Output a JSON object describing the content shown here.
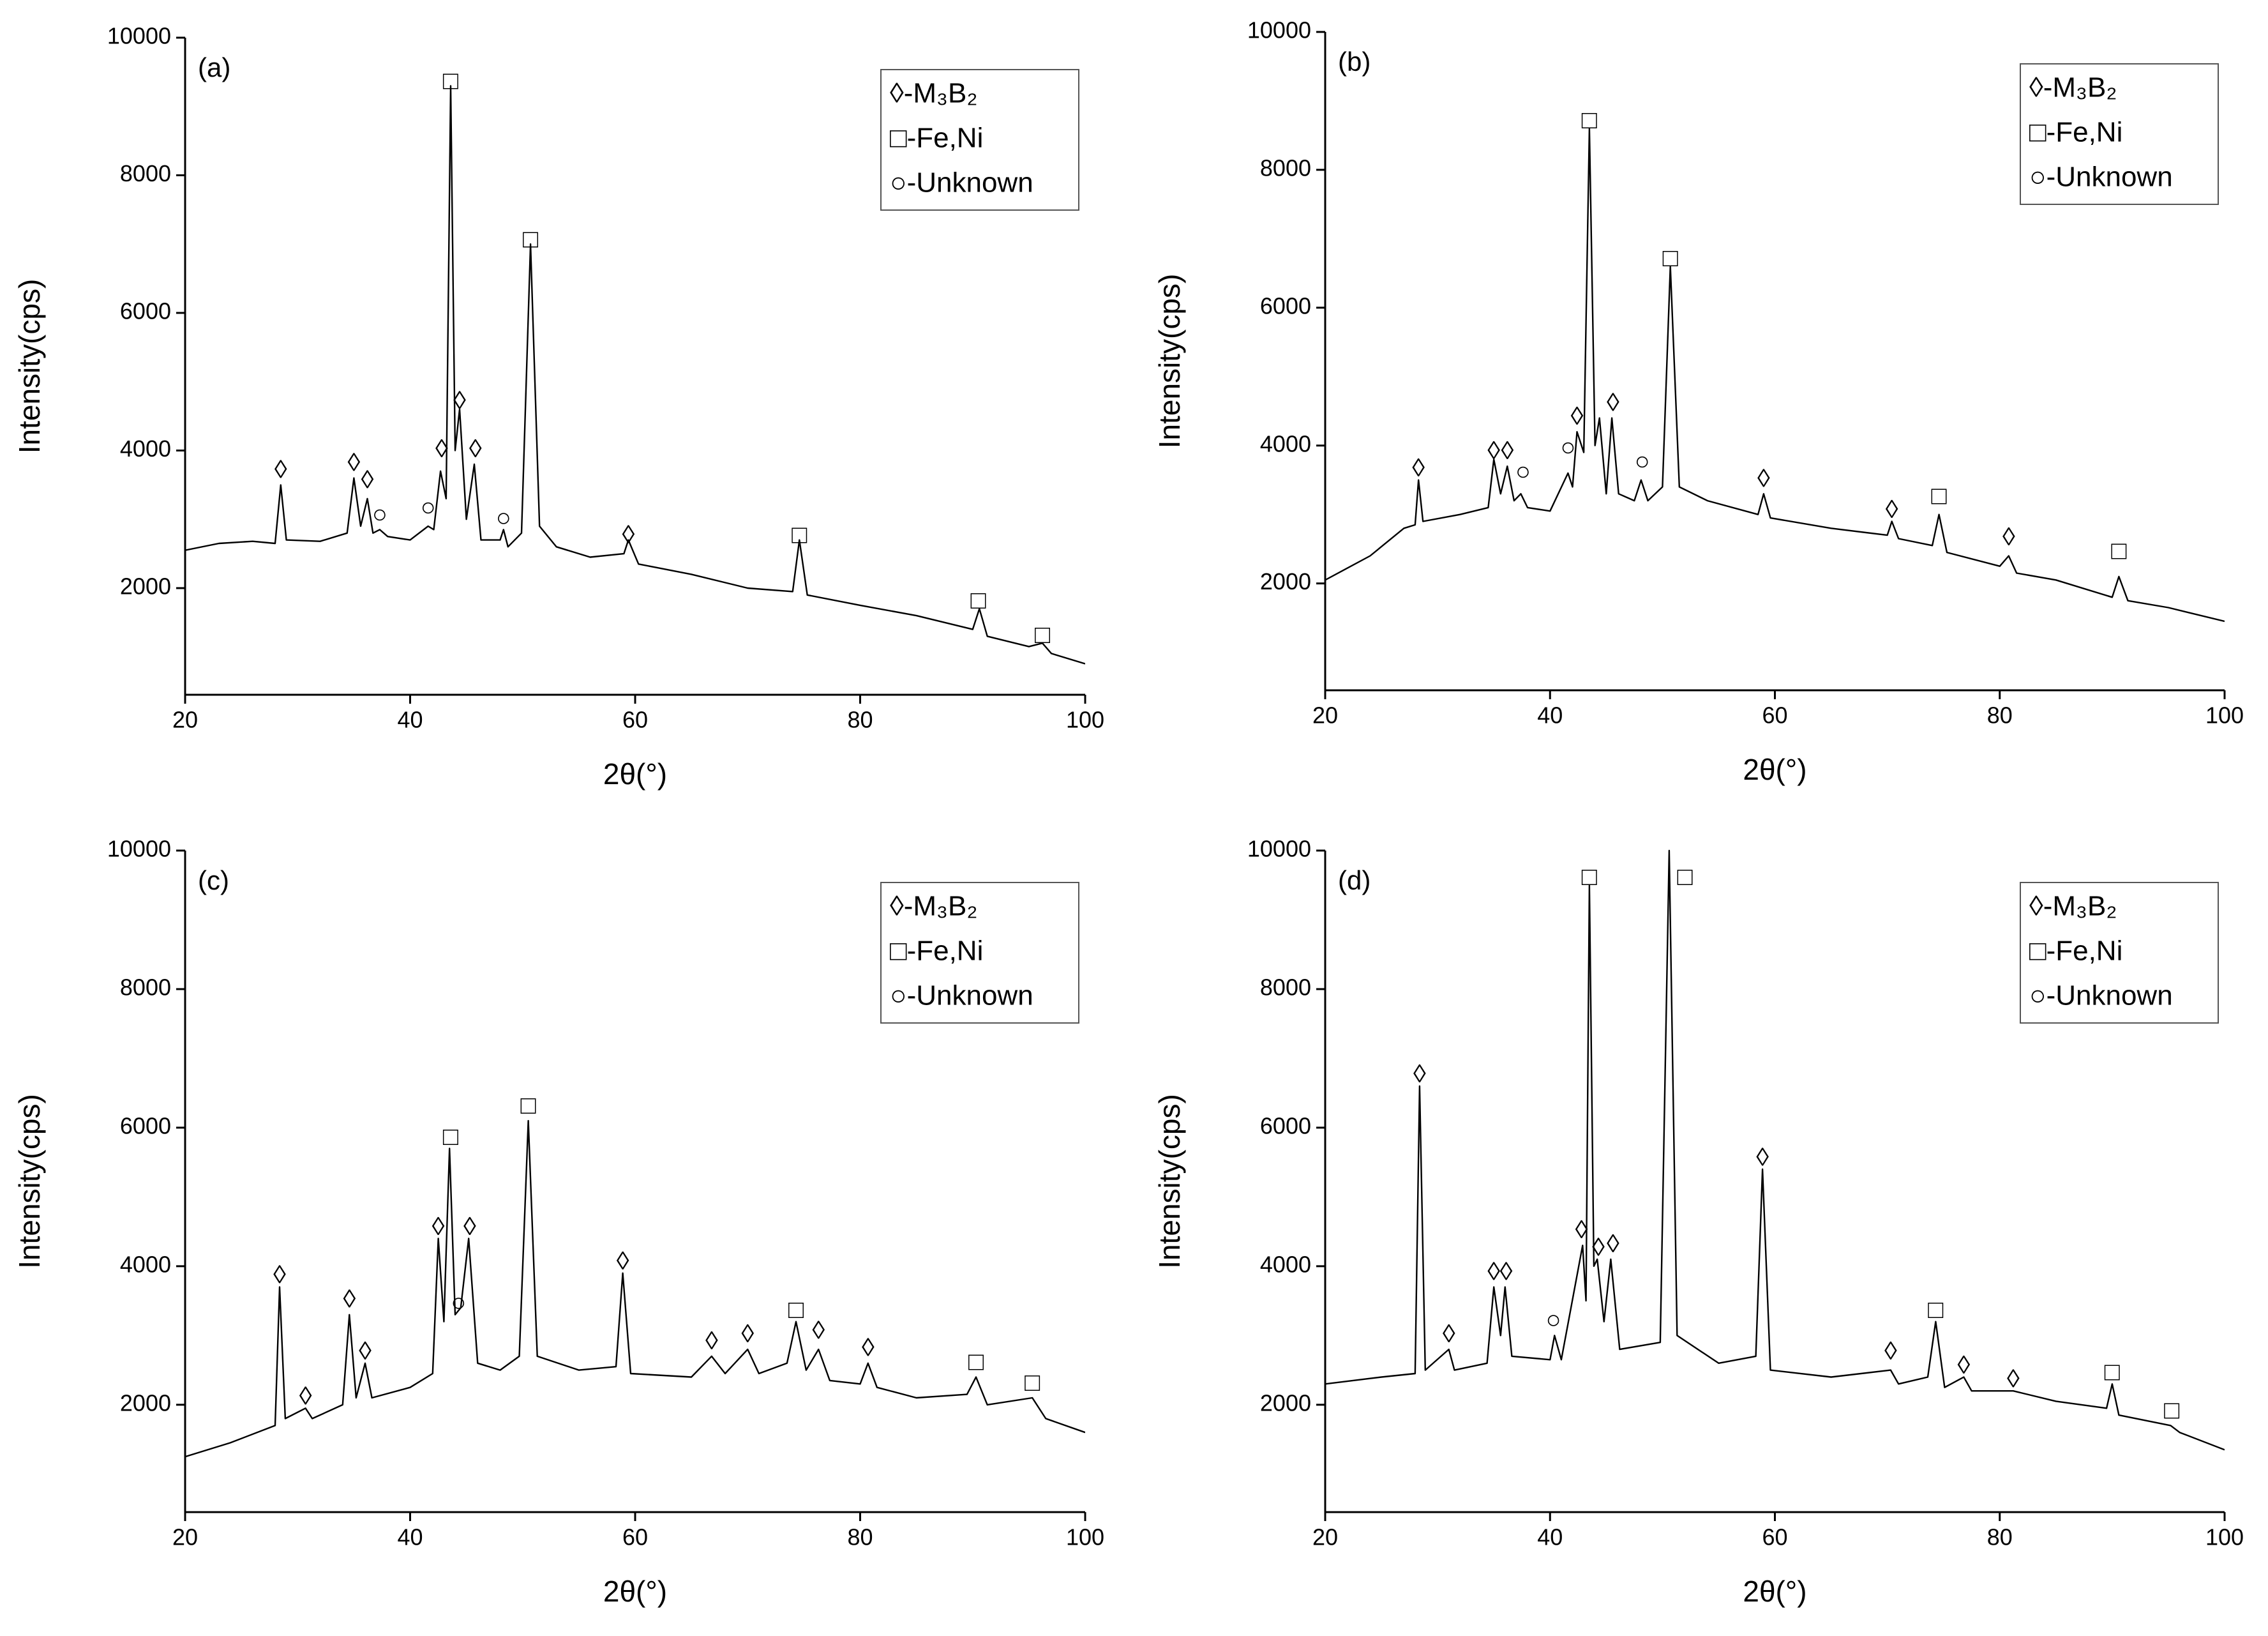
{
  "chart_data": [
    {
      "type": "line",
      "title": "(a)",
      "x_label": "2θ(°)",
      "y_label": "Intensity(cps)",
      "x": [
        20,
        23,
        26,
        28,
        28.5,
        29,
        32,
        34.4,
        35,
        35.6,
        36.2,
        36.7,
        37.3,
        38,
        40,
        41.6,
        42.1,
        42.7,
        43.2,
        43.6,
        44,
        44.4,
        45,
        45.7,
        46.3,
        48,
        48.3,
        48.7,
        49.9,
        50.7,
        51.5,
        53,
        56,
        59,
        59.4,
        60.3,
        65,
        70,
        74,
        74.6,
        75.3,
        80,
        85,
        90,
        90.6,
        91.3,
        95,
        96.2,
        97,
        100
      ],
      "series": [
        {
          "color": "#000000",
          "values": [
            2550,
            2650,
            2680,
            2650,
            3500,
            2700,
            2680,
            2800,
            3600,
            2900,
            3300,
            2800,
            2850,
            2750,
            2700,
            2900,
            2850,
            3700,
            3300,
            9300,
            4000,
            4600,
            3000,
            3800,
            2700,
            2700,
            2850,
            2600,
            2800,
            7000,
            2900,
            2600,
            2450,
            2500,
            2700,
            2350,
            2200,
            2000,
            1950,
            2700,
            1900,
            1750,
            1600,
            1400,
            1700,
            1300,
            1150,
            1200,
            1050,
            900
          ]
        }
      ],
      "xlim": [
        20,
        100
      ],
      "xticks": [
        20,
        40,
        60,
        80,
        100
      ],
      "ylim": [
        450,
        10000
      ],
      "yticks": [
        2000,
        4000,
        6000,
        8000,
        10000
      ],
      "legend": "upper right",
      "legend_entries": [
        "◊-M₃B₂",
        "□-Fe,Ni",
        "○-Unknown"
      ],
      "annotations": [
        {
          "text": "◊",
          "x": 28.5,
          "y": 3700
        },
        {
          "text": "◊",
          "x": 35,
          "y": 3800
        },
        {
          "text": "◊",
          "x": 36.2,
          "y": 3550
        },
        {
          "text": "◊",
          "x": 42.8,
          "y": 4000
        },
        {
          "text": "◊",
          "x": 44.4,
          "y": 4700
        },
        {
          "text": "◊",
          "x": 45.8,
          "y": 4000
        },
        {
          "text": "◊",
          "x": 59.4,
          "y": 2750
        },
        {
          "text": "□",
          "x": 43.6,
          "y": 9350
        },
        {
          "text": "□",
          "x": 50.7,
          "y": 7050
        },
        {
          "text": "□",
          "x": 74.6,
          "y": 2750
        },
        {
          "text": "□",
          "x": 90.5,
          "y": 1800
        },
        {
          "text": "□",
          "x": 96.2,
          "y": 1300
        },
        {
          "text": "○",
          "x": 37.3,
          "y": 3050
        },
        {
          "text": "○",
          "x": 41.6,
          "y": 3150
        },
        {
          "text": "○",
          "x": 48.3,
          "y": 3000
        }
      ]
    },
    {
      "type": "line",
      "title": "(b)",
      "x_label": "2θ(°)",
      "y_label": "Intensity(cps)",
      "x": [
        20,
        24,
        27,
        28,
        28.3,
        28.7,
        32,
        34.5,
        35,
        35.6,
        36.2,
        36.8,
        37.4,
        38,
        40,
        41.6,
        42,
        42.4,
        43,
        43.5,
        44,
        44.4,
        45,
        45.5,
        46.1,
        47.5,
        48.1,
        48.7,
        50,
        50.7,
        51.5,
        54,
        58.5,
        59,
        59.6,
        65,
        70,
        70.4,
        71,
        74,
        74.6,
        75.3,
        80,
        80.8,
        81.5,
        85,
        90,
        90.6,
        91.4,
        95,
        100
      ],
      "series": [
        {
          "color": "#000000",
          "values": [
            2050,
            2400,
            2800,
            2850,
            3500,
            2900,
            3000,
            3100,
            3800,
            3300,
            3700,
            3200,
            3300,
            3100,
            3050,
            3600,
            3400,
            4200,
            3900,
            8600,
            4000,
            4400,
            3300,
            4400,
            3300,
            3200,
            3500,
            3200,
            3400,
            6600,
            3400,
            3200,
            3000,
            3300,
            2950,
            2800,
            2700,
            2900,
            2650,
            2550,
            3000,
            2450,
            2250,
            2400,
            2150,
            2050,
            1800,
            2100,
            1750,
            1650,
            1450
          ]
        }
      ],
      "xlim": [
        20,
        100
      ],
      "xticks": [
        20,
        40,
        60,
        80,
        100
      ],
      "ylim": [
        450,
        10000
      ],
      "yticks": [
        2000,
        4000,
        6000,
        8000,
        10000
      ],
      "legend": "upper right",
      "legend_entries": [
        "◊-M₃B₂",
        "□-Fe,Ni",
        "○-Unknown"
      ],
      "annotations": [
        {
          "text": "◊",
          "x": 28.3,
          "y": 3650
        },
        {
          "text": "◊",
          "x": 35,
          "y": 3900
        },
        {
          "text": "◊",
          "x": 36.2,
          "y": 3900
        },
        {
          "text": "◊",
          "x": 42.4,
          "y": 4400
        },
        {
          "text": "◊",
          "x": 45.6,
          "y": 4600
        },
        {
          "text": "◊",
          "x": 59,
          "y": 3500
        },
        {
          "text": "◊",
          "x": 70.4,
          "y": 3050
        },
        {
          "text": "◊",
          "x": 80.8,
          "y": 2650
        },
        {
          "text": "□",
          "x": 43.5,
          "y": 8700
        },
        {
          "text": "□",
          "x": 50.7,
          "y": 6700
        },
        {
          "text": "□",
          "x": 74.6,
          "y": 3250
        },
        {
          "text": "□",
          "x": 90.6,
          "y": 2450
        },
        {
          "text": "○",
          "x": 37.6,
          "y": 3600
        },
        {
          "text": "○",
          "x": 41.6,
          "y": 3950
        },
        {
          "text": "○",
          "x": 48.2,
          "y": 3750
        }
      ]
    },
    {
      "type": "line",
      "title": "(c)",
      "x_label": "2θ(°)",
      "y_label": "Intensity(cps)",
      "x": [
        20,
        24,
        28,
        28.4,
        28.9,
        30.7,
        31.3,
        34,
        34.6,
        35.2,
        36,
        36.6,
        40,
        42,
        42.5,
        43,
        43.5,
        44,
        44.5,
        45.2,
        46,
        48,
        49.7,
        50.5,
        51.3,
        55,
        58.3,
        58.9,
        59.6,
        65,
        66.8,
        68,
        70,
        71,
        73.5,
        74.3,
        75.2,
        76.3,
        77.3,
        80,
        80.7,
        81.5,
        85,
        89.5,
        90.3,
        91.3,
        95.3,
        96.5,
        100
      ],
      "series": [
        {
          "color": "#000000",
          "values": [
            1250,
            1450,
            1700,
            3700,
            1800,
            1950,
            1800,
            2000,
            3300,
            2100,
            2600,
            2100,
            2250,
            2450,
            4400,
            3200,
            5700,
            3300,
            3400,
            4400,
            2600,
            2500,
            2700,
            6100,
            2700,
            2500,
            2550,
            3900,
            2450,
            2400,
            2700,
            2450,
            2800,
            2450,
            2600,
            3200,
            2500,
            2800,
            2350,
            2300,
            2600,
            2250,
            2100,
            2150,
            2400,
            2000,
            2100,
            1800,
            1600
          ]
        }
      ],
      "xlim": [
        20,
        100
      ],
      "xticks": [
        20,
        40,
        60,
        80,
        100
      ],
      "ylim": [
        450,
        10000
      ],
      "yticks": [
        2000,
        4000,
        6000,
        8000,
        10000
      ],
      "legend": "upper right",
      "legend_entries": [
        "◊-M₃B₂",
        "□-Fe,Ni",
        "○-Unknown"
      ],
      "annotations": [
        {
          "text": "◊",
          "x": 28.4,
          "y": 3850
        },
        {
          "text": "◊",
          "x": 30.7,
          "y": 2100
        },
        {
          "text": "◊",
          "x": 34.6,
          "y": 3500
        },
        {
          "text": "◊",
          "x": 36,
          "y": 2750
        },
        {
          "text": "◊",
          "x": 42.5,
          "y": 4550
        },
        {
          "text": "◊",
          "x": 45.3,
          "y": 4550
        },
        {
          "text": "◊",
          "x": 58.9,
          "y": 4050
        },
        {
          "text": "◊",
          "x": 66.8,
          "y": 2900
        },
        {
          "text": "◊",
          "x": 70,
          "y": 3000
        },
        {
          "text": "◊",
          "x": 76.3,
          "y": 3050
        },
        {
          "text": "◊",
          "x": 80.7,
          "y": 2800
        },
        {
          "text": "□",
          "x": 43.6,
          "y": 5850
        },
        {
          "text": "□",
          "x": 50.5,
          "y": 6300
        },
        {
          "text": "□",
          "x": 74.3,
          "y": 3350
        },
        {
          "text": "□",
          "x": 90.3,
          "y": 2600
        },
        {
          "text": "□",
          "x": 95.3,
          "y": 2300
        },
        {
          "text": "○",
          "x": 44.3,
          "y": 3450
        }
      ]
    },
    {
      "type": "line",
      "title": "(d)",
      "x_label": "2θ(°)",
      "y_label": "Intensity(cps)",
      "x": [
        20,
        25,
        28,
        28.4,
        28.9,
        31,
        31.5,
        34.4,
        35,
        35.6,
        36,
        36.6,
        40,
        40.4,
        41,
        42.9,
        43.2,
        43.5,
        43.9,
        44.2,
        44.8,
        45.4,
        46.2,
        49.8,
        50.6,
        51.3,
        55,
        58.3,
        58.9,
        59.6,
        65,
        70.3,
        71,
        73.6,
        74.3,
        75.1,
        76.8,
        77.5,
        81.2,
        85,
        89.5,
        90,
        90.6,
        95.2,
        96,
        100
      ],
      "series": [
        {
          "color": "#000000",
          "values": [
            2300,
            2400,
            2450,
            6600,
            2500,
            2800,
            2500,
            2600,
            3700,
            3000,
            3700,
            2700,
            2650,
            3000,
            2650,
            4300,
            3500,
            9500,
            4000,
            4100,
            3200,
            4100,
            2800,
            2900,
            10000,
            3000,
            2600,
            2700,
            5400,
            2500,
            2400,
            2500,
            2300,
            2400,
            3200,
            2250,
            2400,
            2200,
            2200,
            2050,
            1950,
            2300,
            1850,
            1700,
            1600,
            1350
          ]
        }
      ],
      "xlim": [
        20,
        100
      ],
      "xticks": [
        20,
        40,
        60,
        80,
        100
      ],
      "ylim": [
        450,
        10000
      ],
      "yticks": [
        2000,
        4000,
        6000,
        8000,
        10000
      ],
      "legend": "upper right",
      "legend_entries": [
        "◊-M₃B₂",
        "□-Fe,Ni",
        "○-Unknown"
      ],
      "annotations": [
        {
          "text": "◊",
          "x": 28.4,
          "y": 6750
        },
        {
          "text": "◊",
          "x": 31,
          "y": 3000
        },
        {
          "text": "◊",
          "x": 35,
          "y": 3900
        },
        {
          "text": "◊",
          "x": 36.1,
          "y": 3900
        },
        {
          "text": "◊",
          "x": 42.8,
          "y": 4500
        },
        {
          "text": "◊",
          "x": 44.3,
          "y": 4250
        },
        {
          "text": "◊",
          "x": 45.6,
          "y": 4300
        },
        {
          "text": "◊",
          "x": 58.9,
          "y": 5550
        },
        {
          "text": "◊",
          "x": 70.3,
          "y": 2750
        },
        {
          "text": "◊",
          "x": 76.8,
          "y": 2550
        },
        {
          "text": "◊",
          "x": 81.2,
          "y": 2350
        },
        {
          "text": "□",
          "x": 43.5,
          "y": 9600
        },
        {
          "text": "□",
          "x": 52,
          "y": 9600
        },
        {
          "text": "□",
          "x": 74.3,
          "y": 3350
        },
        {
          "text": "□",
          "x": 90,
          "y": 2450
        },
        {
          "text": "□",
          "x": 95.3,
          "y": 1900
        },
        {
          "text": "○",
          "x": 40.3,
          "y": 3200
        }
      ]
    }
  ]
}
